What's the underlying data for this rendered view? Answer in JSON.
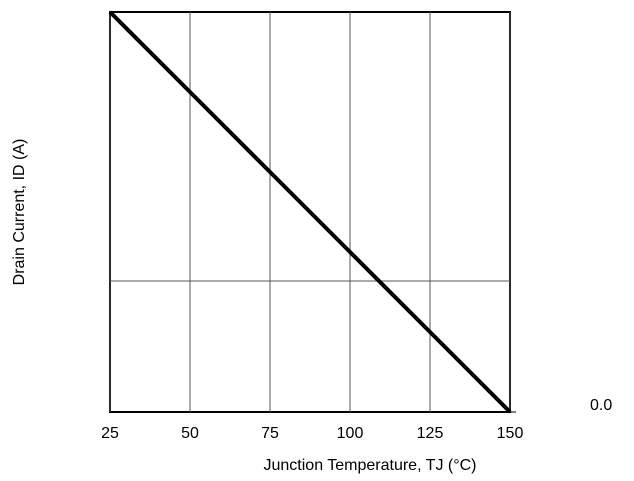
{
  "chart_data": {
    "type": "line",
    "x_label": "Junction Temperature, TJ (°C)",
    "y_label": "Drain Current, ID (A)",
    "x": [
      25,
      50,
      75,
      100,
      125,
      150
    ],
    "series": [
      {
        "name": "ID",
        "color": "#000000",
        "values": [
          1.0,
          0.8,
          0.6,
          0.4,
          0.2,
          0.0
        ]
      }
    ],
    "xlim": [
      25,
      150
    ],
    "xticks": [
      25,
      50,
      75,
      100,
      125,
      150
    ],
    "ylim": [
      0,
      1
    ],
    "yticks": [
      {
        "value": 0,
        "label": "0.0"
      }
    ],
    "grid": true
  }
}
